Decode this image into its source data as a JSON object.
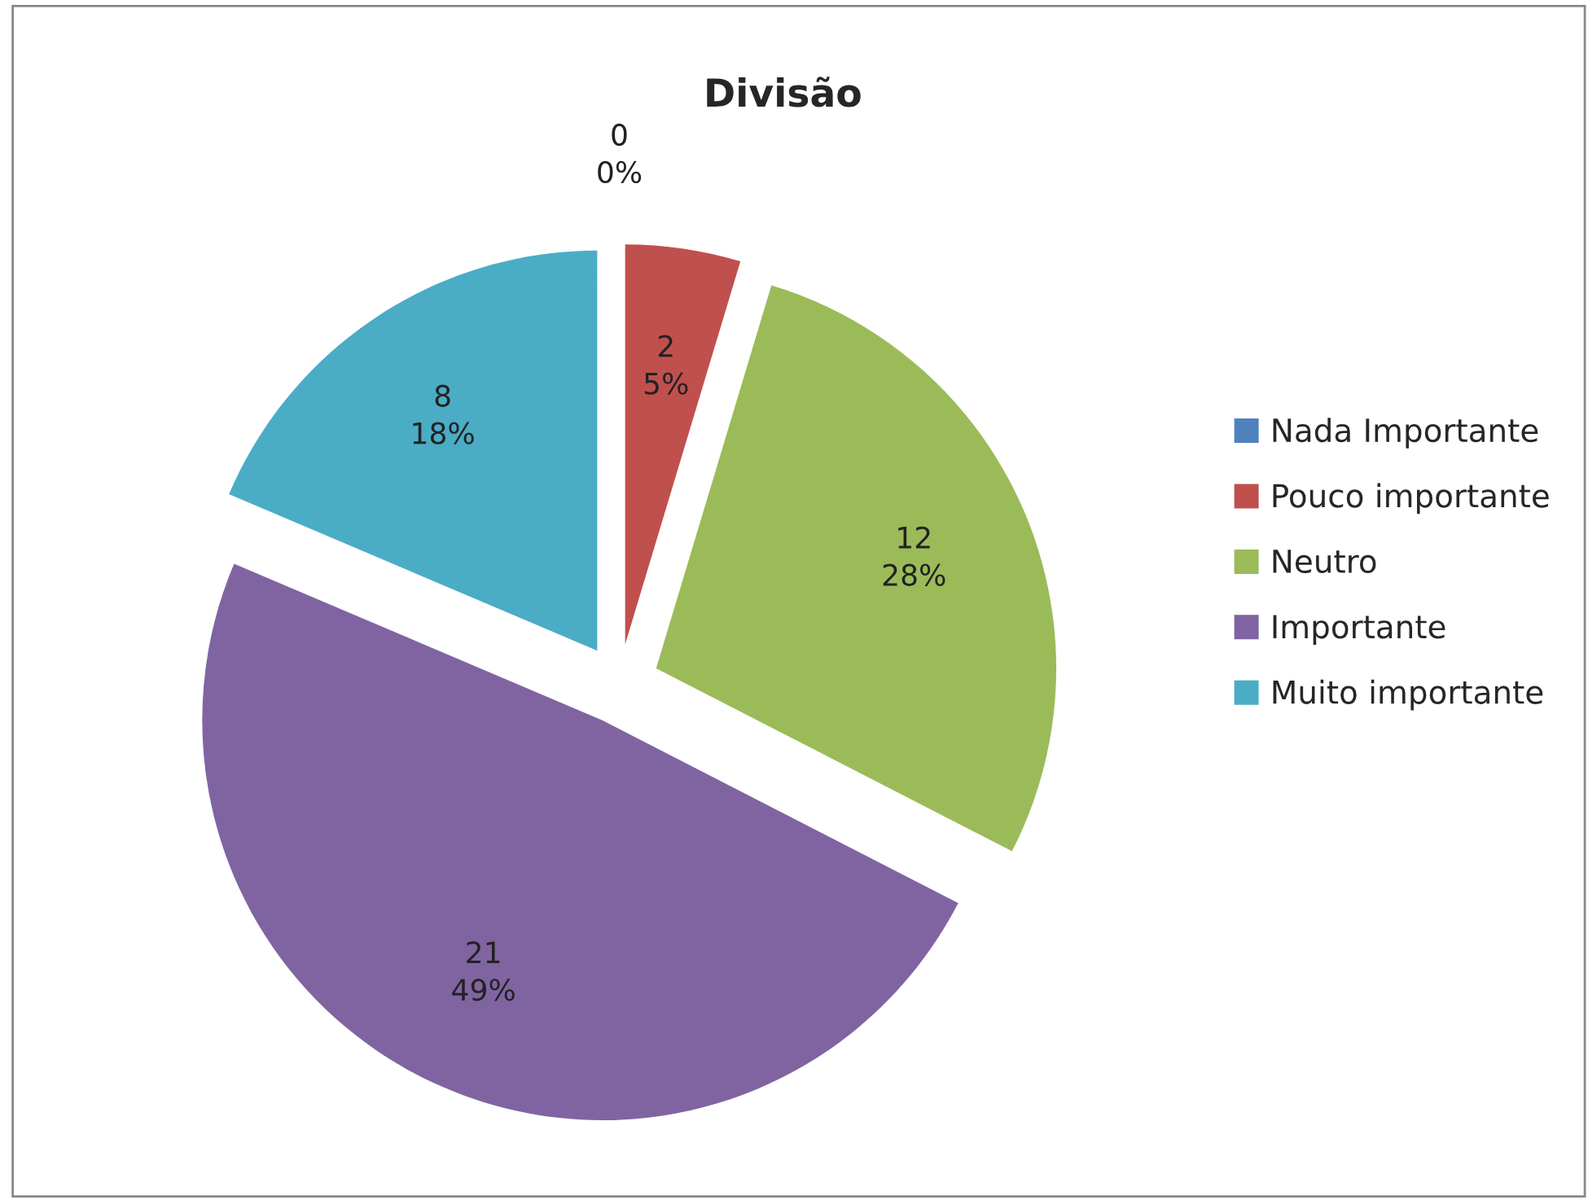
{
  "chart_data": {
    "type": "pie",
    "title": "Divisão",
    "categories": [
      "Nada Importante",
      "Pouco importante",
      "Neutro",
      "Importante",
      "Muito importante"
    ],
    "values": [
      0,
      2,
      12,
      21,
      8
    ],
    "colors": [
      "#4f81bd",
      "#c0504d",
      "#9bbb59",
      "#8064a2",
      "#4bacc6"
    ],
    "value_labels": [
      "0\n0%",
      "2\n5%",
      "12\n28%",
      "21\n49%",
      "8\n18%"
    ],
    "legend": "right"
  }
}
